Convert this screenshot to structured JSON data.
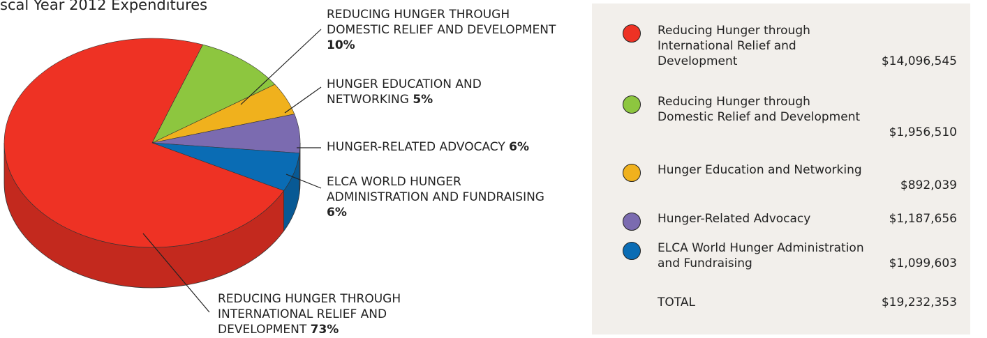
{
  "chart_data": {
    "type": "pie",
    "title": "scal Year 2012 Expenditures",
    "categories": [
      "REDUCING HUNGER THROUGH INTERNATIONAL RELIEF AND DEVELOPMENT",
      "REDUCING HUNGER THROUGH DOMESTIC RELIEF AND DEVELOPMENT",
      "HUNGER EDUCATION AND NETWORKING",
      "HUNGER-RELATED ADVOCACY",
      "ELCA WORLD HUNGER ADMINISTRATION AND FUNDRAISING"
    ],
    "values": [
      73,
      10,
      5,
      6,
      6
    ],
    "value_labels": [
      "73%",
      "10%",
      "5%",
      "6%",
      "6%"
    ],
    "colors": [
      "#ee3224",
      "#8dc63f",
      "#f0b11d",
      "#7b6bb0",
      "#0a6cb4"
    ]
  },
  "legend": {
    "rows": [
      {
        "name": "Reducing Hunger through International Relief and Development",
        "amount": "$14,096,545"
      },
      {
        "name": "Reducing Hunger through Domestic Relief and Development",
        "amount": "$1,956,510"
      },
      {
        "name": "Hunger Education and Networking",
        "amount": "$892,039"
      },
      {
        "name": "Hunger-Related Advocacy",
        "amount": "$1,187,656"
      },
      {
        "name": "ELCA World Hunger Administration and Fundraising",
        "amount": "$1,099,603"
      }
    ],
    "total_label": "TOTAL",
    "total_amount": "$19,232,353"
  }
}
